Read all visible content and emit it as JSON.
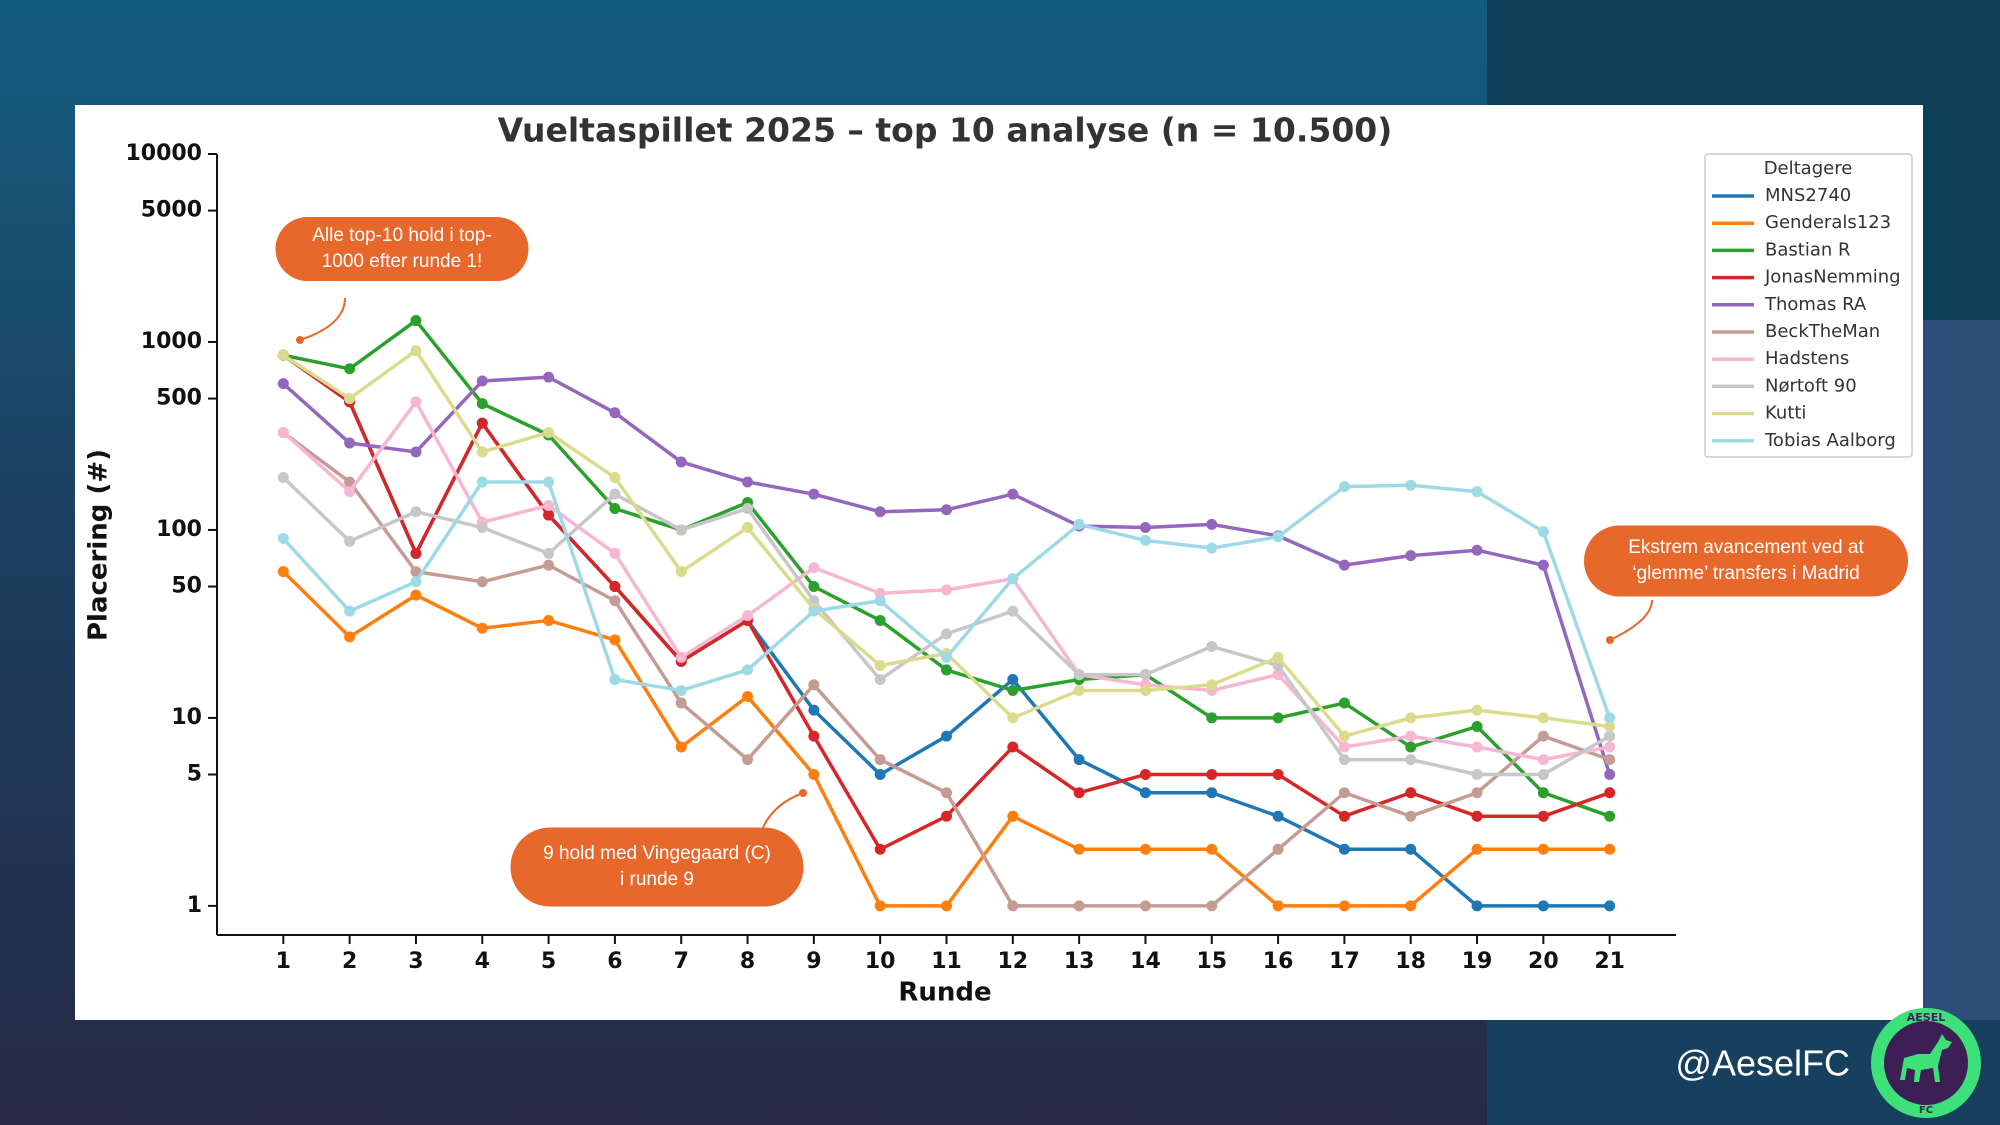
{
  "chart_data": {
    "type": "line",
    "title": "Vueltaspillet 2025 – top 10 analyse (n = 10.500)",
    "xlabel": "Runde",
    "ylabel": "Placering (#)",
    "yscale": "log",
    "legend_title": "Deltagere",
    "legend": "upper right",
    "x": [
      1,
      2,
      3,
      4,
      5,
      6,
      7,
      8,
      9,
      10,
      11,
      12,
      13,
      14,
      15,
      16,
      17,
      18,
      19,
      20,
      21
    ],
    "xlim": [
      0,
      22
    ],
    "xticks": [
      1,
      2,
      3,
      4,
      5,
      6,
      7,
      8,
      9,
      10,
      11,
      12,
      13,
      14,
      15,
      16,
      17,
      18,
      19,
      20,
      21
    ],
    "ylim": [
      0.7,
      10000
    ],
    "yticks": [
      1,
      5,
      10,
      50,
      100,
      500,
      1000,
      5000,
      10000
    ],
    "series": [
      {
        "name": "MNS2740",
        "color": "#1f77b4",
        "values": [
          850,
          480,
          75,
          370,
          120,
          50,
          20,
          33,
          11,
          5,
          8,
          16,
          6,
          4,
          4,
          3,
          2,
          2,
          1,
          1,
          1
        ]
      },
      {
        "name": "Genderals123",
        "color": "#ff7f0e",
        "values": [
          60,
          27,
          45,
          30,
          33,
          26,
          7,
          13,
          5,
          1,
          1,
          3,
          2,
          2,
          2,
          1,
          1,
          1,
          2,
          2,
          2
        ]
      },
      {
        "name": "Bastian R",
        "color": "#2ca02c",
        "values": [
          850,
          720,
          1300,
          470,
          320,
          130,
          100,
          140,
          50,
          33,
          18,
          14,
          16,
          17,
          10,
          10,
          12,
          7,
          9,
          4,
          3
        ]
      },
      {
        "name": "JonasNemming",
        "color": "#d62728",
        "values": [
          850,
          480,
          75,
          370,
          120,
          50,
          20,
          33,
          8,
          2,
          3,
          7,
          4,
          5,
          5,
          5,
          3,
          4,
          3,
          3,
          4
        ]
      },
      {
        "name": "Thomas RA",
        "color": "#9467bd",
        "values": [
          600,
          290,
          260,
          620,
          650,
          420,
          230,
          180,
          155,
          125,
          128,
          155,
          105,
          103,
          107,
          93,
          65,
          73,
          78,
          65,
          5
        ]
      },
      {
        "name": "BeckTheMan",
        "color": "#c49c94",
        "values": [
          330,
          180,
          60,
          53,
          65,
          42,
          12,
          6,
          15,
          6,
          4,
          1,
          1,
          1,
          1,
          2,
          4,
          3,
          4,
          8,
          6
        ]
      },
      {
        "name": "Hadstens",
        "color": "#f7b6d2",
        "values": [
          330,
          160,
          480,
          110,
          135,
          75,
          21,
          35,
          63,
          46,
          48,
          55,
          17,
          15,
          14,
          17,
          7,
          8,
          7,
          6,
          7
        ]
      },
      {
        "name": "Nørtoft 90",
        "color": "#c7c7c7",
        "values": [
          190,
          87,
          125,
          103,
          75,
          155,
          100,
          130,
          42,
          16,
          28,
          37,
          17,
          17,
          24,
          19,
          6,
          6,
          5,
          5,
          8
        ]
      },
      {
        "name": "Kutti",
        "color": "#dbdb8d",
        "values": [
          850,
          500,
          900,
          260,
          330,
          190,
          60,
          103,
          38,
          19,
          22,
          10,
          14,
          14,
          15,
          21,
          8,
          10,
          11,
          10,
          9
        ]
      },
      {
        "name": "Tobias Aalborg",
        "color": "#9edae5",
        "values": [
          90,
          37,
          53,
          180,
          180,
          16,
          14,
          18,
          37,
          42,
          21,
          55,
          107,
          88,
          80,
          92,
          170,
          173,
          160,
          98,
          10
        ]
      }
    ],
    "annotations": [
      {
        "lines": [
          "Alle top-10 hold i top-",
          "1000 efter runde 1!"
        ]
      },
      {
        "lines": [
          "9 hold med Vingegaard (C)",
          "i runde 9"
        ]
      },
      {
        "lines": [
          "Ekstrem avancement ved at",
          "‘glemme’ transfers i Madrid"
        ]
      }
    ]
  },
  "handle": "@AeselFC",
  "logo": {
    "top": "AESEL",
    "bottom": "FC"
  }
}
